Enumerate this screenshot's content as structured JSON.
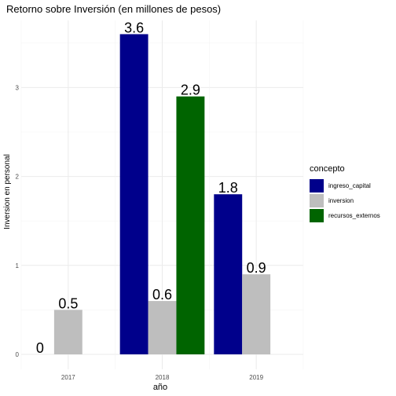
{
  "chart_data": {
    "type": "bar",
    "title": "Retorno sobre Inversión (en millones de pesos)",
    "xlabel": "año",
    "ylabel": "Inversion en personal",
    "categories": [
      "2017",
      "2018",
      "2019"
    ],
    "yticks": [
      0,
      1,
      2,
      3
    ],
    "ylim": [
      0,
      3.75
    ],
    "grid": true,
    "legend_title": "concepto",
    "legend_position": "right",
    "series": [
      {
        "name": "ingreso_capital",
        "color": "#00008b",
        "values": [
          0,
          3.6,
          1.8
        ]
      },
      {
        "name": "inversion",
        "color": "#bebebe",
        "values": [
          0.5,
          0.6,
          0.9
        ]
      },
      {
        "name": "recursos_externos",
        "color": "#006400",
        "values": [
          null,
          2.9,
          null
        ]
      }
    ],
    "data_labels": [
      {
        "category": "2017",
        "series": "ingreso_capital",
        "text": "0"
      },
      {
        "category": "2017",
        "series": "inversion",
        "text": "0.5"
      },
      {
        "category": "2018",
        "series": "ingreso_capital",
        "text": "3.6"
      },
      {
        "category": "2018",
        "series": "inversion",
        "text": "0.6"
      },
      {
        "category": "2018",
        "series": "recursos_externos",
        "text": "2.9"
      },
      {
        "category": "2019",
        "series": "ingreso_capital",
        "text": "1.8"
      },
      {
        "category": "2019",
        "series": "inversion",
        "text": "0.9"
      }
    ]
  }
}
